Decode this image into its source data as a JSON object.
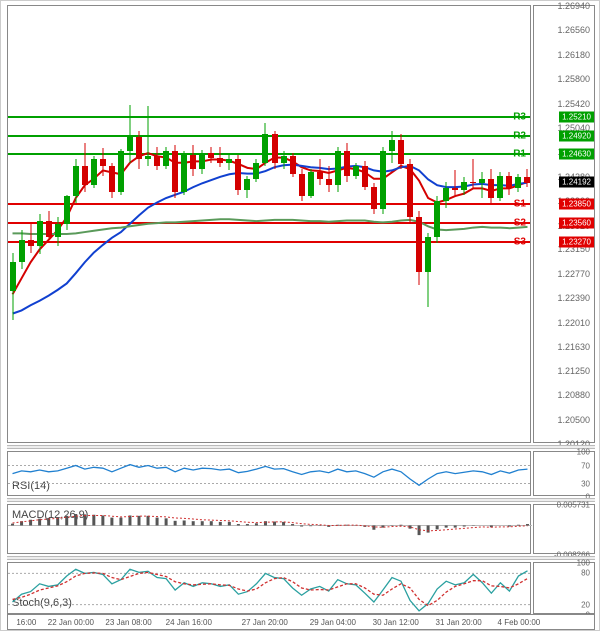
{
  "main": {
    "ylim": [
      1.2012,
      1.2694
    ],
    "yticks": [
      1.2694,
      1.2656,
      1.2618,
      1.258,
      1.2542,
      1.2504,
      1.2466,
      1.2428,
      1.239,
      1.2352,
      1.2315,
      1.2277,
      1.2239,
      1.2201,
      1.2163,
      1.2125,
      1.2088,
      1.205,
      1.2012
    ],
    "ytick_labels": [
      "1.26940",
      "1.26560",
      "1.26180",
      "1.25800",
      "1.25420",
      "1.25040",
      "1.24660",
      "1.24280",
      "1.23900",
      "1.23520",
      "1.23150",
      "1.22770",
      "1.22390",
      "1.22010",
      "1.21630",
      "1.21250",
      "1.20880",
      "1.20500",
      "1.20120"
    ],
    "price_flag": {
      "value": 1.24192,
      "label": "1.24192",
      "bg": "#000000"
    },
    "sr_levels": [
      {
        "name": "R3",
        "value": 1.2521,
        "label": "1.25210",
        "color": "#00a000",
        "text": "R3"
      },
      {
        "name": "R2",
        "value": 1.2492,
        "label": "1.24920",
        "color": "#00a000",
        "text": "R2"
      },
      {
        "name": "R1",
        "value": 1.2463,
        "label": "1.24630",
        "color": "#00a000",
        "text": "R1"
      },
      {
        "name": "S1",
        "value": 1.2385,
        "label": "1.23850",
        "color": "#e00000",
        "text": "S1"
      },
      {
        "name": "S2",
        "value": 1.2356,
        "label": "1.23560",
        "color": "#e00000",
        "text": "S2"
      },
      {
        "name": "S3",
        "value": 1.2327,
        "label": "1.23270",
        "color": "#e00000",
        "text": "S3"
      }
    ],
    "candle_up_color": "#00a000",
    "candle_dn_color": "#d40000",
    "candle_width": 6,
    "candles": [
      {
        "o": 1.225,
        "h": 1.231,
        "l": 1.2205,
        "c": 1.2295
      },
      {
        "o": 1.2295,
        "h": 1.2345,
        "l": 1.2285,
        "c": 1.233
      },
      {
        "o": 1.233,
        "h": 1.2355,
        "l": 1.231,
        "c": 1.232
      },
      {
        "o": 1.232,
        "h": 1.237,
        "l": 1.2308,
        "c": 1.236
      },
      {
        "o": 1.236,
        "h": 1.2375,
        "l": 1.233,
        "c": 1.2335
      },
      {
        "o": 1.2335,
        "h": 1.2365,
        "l": 1.232,
        "c": 1.2355
      },
      {
        "o": 1.2355,
        "h": 1.24,
        "l": 1.2345,
        "c": 1.2398
      },
      {
        "o": 1.2398,
        "h": 1.2455,
        "l": 1.2388,
        "c": 1.2445
      },
      {
        "o": 1.2445,
        "h": 1.248,
        "l": 1.2405,
        "c": 1.2415
      },
      {
        "o": 1.2415,
        "h": 1.246,
        "l": 1.241,
        "c": 1.2455
      },
      {
        "o": 1.2455,
        "h": 1.2473,
        "l": 1.243,
        "c": 1.2445
      },
      {
        "o": 1.2445,
        "h": 1.245,
        "l": 1.2395,
        "c": 1.2405
      },
      {
        "o": 1.2405,
        "h": 1.2472,
        "l": 1.24,
        "c": 1.2468
      },
      {
        "o": 1.2468,
        "h": 1.254,
        "l": 1.245,
        "c": 1.249
      },
      {
        "o": 1.249,
        "h": 1.25,
        "l": 1.244,
        "c": 1.2455
      },
      {
        "o": 1.2455,
        "h": 1.2538,
        "l": 1.2445,
        "c": 1.246
      },
      {
        "o": 1.246,
        "h": 1.2475,
        "l": 1.2438,
        "c": 1.2445
      },
      {
        "o": 1.2445,
        "h": 1.2475,
        "l": 1.244,
        "c": 1.2468
      },
      {
        "o": 1.2468,
        "h": 1.2478,
        "l": 1.2395,
        "c": 1.2405
      },
      {
        "o": 1.2405,
        "h": 1.2468,
        "l": 1.24,
        "c": 1.2462
      },
      {
        "o": 1.2462,
        "h": 1.2478,
        "l": 1.243,
        "c": 1.244
      },
      {
        "o": 1.244,
        "h": 1.247,
        "l": 1.2432,
        "c": 1.2465
      },
      {
        "o": 1.2465,
        "h": 1.2475,
        "l": 1.245,
        "c": 1.2458
      },
      {
        "o": 1.2458,
        "h": 1.2475,
        "l": 1.2443,
        "c": 1.245
      },
      {
        "o": 1.245,
        "h": 1.2465,
        "l": 1.2438,
        "c": 1.2455
      },
      {
        "o": 1.2455,
        "h": 1.2462,
        "l": 1.24,
        "c": 1.2408
      },
      {
        "o": 1.2408,
        "h": 1.243,
        "l": 1.2395,
        "c": 1.2425
      },
      {
        "o": 1.2425,
        "h": 1.2455,
        "l": 1.242,
        "c": 1.245
      },
      {
        "o": 1.245,
        "h": 1.2512,
        "l": 1.2445,
        "c": 1.2495
      },
      {
        "o": 1.2495,
        "h": 1.25,
        "l": 1.244,
        "c": 1.245
      },
      {
        "o": 1.245,
        "h": 1.2468,
        "l": 1.244,
        "c": 1.246
      },
      {
        "o": 1.246,
        "h": 1.2465,
        "l": 1.2428,
        "c": 1.2432
      },
      {
        "o": 1.2432,
        "h": 1.244,
        "l": 1.239,
        "c": 1.2398
      },
      {
        "o": 1.2398,
        "h": 1.244,
        "l": 1.2395,
        "c": 1.2435
      },
      {
        "o": 1.2435,
        "h": 1.2455,
        "l": 1.2415,
        "c": 1.2425
      },
      {
        "o": 1.2425,
        "h": 1.2445,
        "l": 1.2405,
        "c": 1.2415
      },
      {
        "o": 1.2415,
        "h": 1.2475,
        "l": 1.2405,
        "c": 1.2468
      },
      {
        "o": 1.2468,
        "h": 1.248,
        "l": 1.242,
        "c": 1.243
      },
      {
        "o": 1.243,
        "h": 1.245,
        "l": 1.2425,
        "c": 1.2445
      },
      {
        "o": 1.2445,
        "h": 1.2452,
        "l": 1.2408,
        "c": 1.2412
      },
      {
        "o": 1.2412,
        "h": 1.2418,
        "l": 1.237,
        "c": 1.2378
      },
      {
        "o": 1.2378,
        "h": 1.2475,
        "l": 1.237,
        "c": 1.2468
      },
      {
        "o": 1.2468,
        "h": 1.25,
        "l": 1.245,
        "c": 1.2485
      },
      {
        "o": 1.2485,
        "h": 1.2495,
        "l": 1.244,
        "c": 1.2448
      },
      {
        "o": 1.2448,
        "h": 1.2455,
        "l": 1.2355,
        "c": 1.2365
      },
      {
        "o": 1.2365,
        "h": 1.2375,
        "l": 1.226,
        "c": 1.228
      },
      {
        "o": 1.228,
        "h": 1.234,
        "l": 1.2225,
        "c": 1.2335
      },
      {
        "o": 1.2335,
        "h": 1.2398,
        "l": 1.2325,
        "c": 1.239
      },
      {
        "o": 1.239,
        "h": 1.242,
        "l": 1.238,
        "c": 1.241
      },
      {
        "o": 1.241,
        "h": 1.2438,
        "l": 1.2398,
        "c": 1.2408
      },
      {
        "o": 1.2408,
        "h": 1.2428,
        "l": 1.24,
        "c": 1.242
      },
      {
        "o": 1.242,
        "h": 1.2455,
        "l": 1.241,
        "c": 1.2418
      },
      {
        "o": 1.2418,
        "h": 1.2435,
        "l": 1.2395,
        "c": 1.2425
      },
      {
        "o": 1.2425,
        "h": 1.244,
        "l": 1.2385,
        "c": 1.2395
      },
      {
        "o": 1.2395,
        "h": 1.2435,
        "l": 1.239,
        "c": 1.243
      },
      {
        "o": 1.243,
        "h": 1.2435,
        "l": 1.24,
        "c": 1.241
      },
      {
        "o": 1.241,
        "h": 1.2432,
        "l": 1.2405,
        "c": 1.2428
      },
      {
        "o": 1.2428,
        "h": 1.244,
        "l": 1.2412,
        "c": 1.2419
      }
    ],
    "ma_lines": [
      {
        "name": "red-ma",
        "color": "#d40000",
        "width": 2,
        "values": [
          1.2245,
          1.227,
          1.2295,
          1.2315,
          1.233,
          1.2345,
          1.2365,
          1.2395,
          1.2415,
          1.2425,
          1.2438,
          1.2435,
          1.2432,
          1.245,
          1.246,
          1.2465,
          1.246,
          1.2458,
          1.245,
          1.245,
          1.2452,
          1.2452,
          1.2455,
          1.2455,
          1.2453,
          1.2448,
          1.2442,
          1.244,
          1.245,
          1.2458,
          1.2458,
          1.2452,
          1.2443,
          1.2438,
          1.2437,
          1.2434,
          1.2438,
          1.2442,
          1.244,
          1.2435,
          1.2425,
          1.2425,
          1.2435,
          1.2445,
          1.244,
          1.2422,
          1.2395,
          1.2388,
          1.2392,
          1.2398,
          1.2402,
          1.241,
          1.241,
          1.2406,
          1.241,
          1.241,
          1.2415,
          1.242
        ]
      },
      {
        "name": "blue-ma",
        "color": "#1040d0",
        "width": 2,
        "values": [
          1.2215,
          1.222,
          1.2228,
          1.2235,
          1.2243,
          1.2252,
          1.2262,
          1.2278,
          1.2295,
          1.231,
          1.2322,
          1.2333,
          1.2342,
          1.2355,
          1.2368,
          1.238,
          1.2388,
          1.2395,
          1.24,
          1.2405,
          1.2412,
          1.2418,
          1.2423,
          1.2428,
          1.2432,
          1.2434,
          1.2433,
          1.2433,
          1.2437,
          1.2443,
          1.2446,
          1.2447,
          1.2445,
          1.2443,
          1.2442,
          1.244,
          1.2441,
          1.2444,
          1.2445,
          1.2443,
          1.2438,
          1.2436,
          1.2438,
          1.2443,
          1.2445,
          1.2438,
          1.2424,
          1.2415,
          1.2412,
          1.2412,
          1.2413,
          1.2416,
          1.2417,
          1.2415,
          1.2415,
          1.2414,
          1.2417,
          1.2419
        ]
      },
      {
        "name": "green-ma",
        "color": "#5a9a5a",
        "width": 2,
        "values": [
          1.234,
          1.234,
          1.2339,
          1.2339,
          1.2339,
          1.2339,
          1.2339,
          1.234,
          1.2342,
          1.2344,
          1.2346,
          1.2348,
          1.2349,
          1.2351,
          1.2353,
          1.2355,
          1.2356,
          1.2357,
          1.2357,
          1.2358,
          1.2359,
          1.236,
          1.2361,
          1.2362,
          1.2362,
          1.2361,
          1.236,
          1.2359,
          1.236,
          1.2361,
          1.2361,
          1.2361,
          1.236,
          1.2359,
          1.2359,
          1.2358,
          1.2359,
          1.236,
          1.236,
          1.236,
          1.2358,
          1.2357,
          1.2358,
          1.236,
          1.2361,
          1.2358,
          1.2351,
          1.2346,
          1.2345,
          1.2346,
          1.2347,
          1.2349,
          1.235,
          1.2349,
          1.2349,
          1.2348,
          1.2349,
          1.235
        ]
      }
    ]
  },
  "rsi": {
    "label": "RSI(14)",
    "ylim": [
      0,
      100
    ],
    "yticks": [
      100,
      70,
      30,
      0
    ],
    "line_color": "#2080d0",
    "level_color": "#aaaaaa",
    "levels": [
      70,
      30
    ],
    "values": [
      52,
      58,
      56,
      60,
      56,
      58,
      64,
      70,
      62,
      66,
      64,
      56,
      64,
      72,
      66,
      70,
      64,
      66,
      56,
      64,
      60,
      64,
      63,
      60,
      62,
      54,
      57,
      62,
      68,
      62,
      63,
      56,
      50,
      56,
      58,
      54,
      62,
      56,
      58,
      52,
      44,
      56,
      62,
      56,
      40,
      26,
      40,
      52,
      56,
      52,
      55,
      58,
      56,
      50,
      58,
      53,
      60,
      62
    ]
  },
  "macd": {
    "label": "MACD(12,26,9)",
    "ylim": [
      -0.00827,
      0.00573
    ],
    "yticks": [
      0.005731,
      -0.008266
    ],
    "ytick_labels": [
      "0.005731",
      "-0.008266"
    ],
    "hist_color": "#555555",
    "macd_color": "#2080d0",
    "signal_color": "#d03030",
    "hist": [
      0.0005,
      0.0012,
      0.0016,
      0.0019,
      0.0021,
      0.0023,
      0.0027,
      0.0032,
      0.0031,
      0.003,
      0.0028,
      0.0022,
      0.0022,
      0.0028,
      0.0027,
      0.0027,
      0.0022,
      0.002,
      0.0013,
      0.0014,
      0.0012,
      0.0012,
      0.0012,
      0.001,
      0.001,
      0.0004,
      0.0004,
      0.0006,
      0.0012,
      0.0011,
      0.001,
      0.0004,
      -0.0003,
      -0.0002,
      -0.0001,
      -0.0004,
      0.0002,
      0.0002,
      0.0001,
      -0.0004,
      -0.0012,
      -0.0006,
      0.0001,
      0.0002,
      -0.0009,
      -0.0027,
      -0.002,
      -0.0011,
      -0.0006,
      -0.0006,
      -0.0003,
      0.0001,
      0.0,
      -0.0005,
      0.0,
      -0.0003,
      0.0002,
      0.0004
    ],
    "signal": [
      0.0007,
      0.001,
      0.0013,
      0.0016,
      0.0018,
      0.002,
      0.0023,
      0.0026,
      0.0028,
      0.0028,
      0.0028,
      0.0026,
      0.0024,
      0.0025,
      0.0026,
      0.0026,
      0.0025,
      0.0024,
      0.0021,
      0.002,
      0.0018,
      0.0016,
      0.0015,
      0.0014,
      0.0013,
      0.0011,
      0.0009,
      0.0008,
      0.0009,
      0.001,
      0.001,
      0.0008,
      0.0005,
      0.0003,
      0.0002,
      0.0,
      0.0,
      0.0001,
      0.0001,
      -0.0001,
      -0.0004,
      -0.0005,
      -0.0003,
      -0.0002,
      -0.0004,
      -0.0012,
      -0.0015,
      -0.0014,
      -0.0012,
      -0.001,
      -0.0008,
      -0.0006,
      -0.0004,
      -0.0005,
      -0.0004,
      -0.0004,
      -0.0002,
      -0.0001
    ]
  },
  "stoch": {
    "label": "Stoch(9,6,3)",
    "ylim": [
      0,
      100
    ],
    "yticks": [
      100,
      80,
      20,
      0
    ],
    "level_color": "#aaaaaa",
    "levels": [
      80,
      20
    ],
    "k_color": "#2aa0a0",
    "d_color": "#d03030",
    "k": [
      25,
      40,
      45,
      60,
      55,
      58,
      75,
      88,
      80,
      82,
      78,
      60,
      68,
      88,
      82,
      84,
      72,
      70,
      48,
      62,
      55,
      62,
      60,
      55,
      58,
      40,
      45,
      60,
      80,
      72,
      70,
      52,
      38,
      50,
      55,
      46,
      68,
      60,
      58,
      42,
      25,
      48,
      72,
      65,
      28,
      8,
      22,
      50,
      65,
      58,
      62,
      78,
      62,
      42,
      62,
      46,
      75,
      85
    ],
    "d": [
      30,
      34,
      40,
      48,
      52,
      56,
      64,
      75,
      80,
      81,
      80,
      72,
      68,
      74,
      80,
      82,
      78,
      74,
      64,
      60,
      58,
      59,
      60,
      58,
      57,
      50,
      46,
      50,
      62,
      70,
      72,
      64,
      52,
      48,
      49,
      48,
      54,
      60,
      60,
      52,
      40,
      38,
      50,
      60,
      52,
      30,
      18,
      28,
      44,
      55,
      60,
      66,
      66,
      56,
      55,
      52,
      60,
      70
    ]
  },
  "x_axis": {
    "labels": [
      "16:00",
      "22 Jan 00:00",
      "23 Jan 08:00",
      "24 Jan 16:00",
      "27 Jan 20:00",
      "29 Jan 04:00",
      "30 Jan 12:00",
      "31 Jan 20:00",
      "4 Feb 00:00"
    ],
    "positions": [
      0.035,
      0.12,
      0.23,
      0.345,
      0.49,
      0.62,
      0.74,
      0.86,
      0.975
    ]
  },
  "colors": {
    "axis_text": "#666666",
    "border": "#888888"
  }
}
